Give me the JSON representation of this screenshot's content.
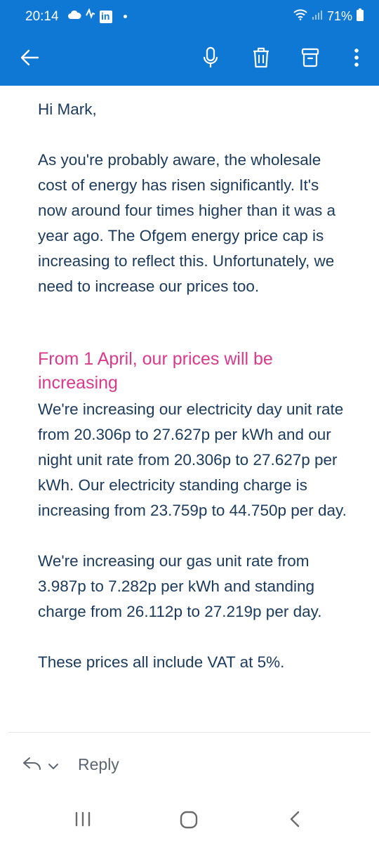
{
  "status_bar": {
    "time": "20:14",
    "battery": "71%",
    "icons": [
      "cloud-icon",
      "activity-icon",
      "linkedin-icon",
      "dot-icon",
      "wifi-icon",
      "signal-icon",
      "battery-icon"
    ],
    "linkedin_text": "in"
  },
  "app_bar": {
    "color": "#0f78d4",
    "icons": [
      "back-arrow-icon",
      "microphone-icon",
      "trash-icon",
      "archive-icon",
      "more-vertical-icon"
    ]
  },
  "email": {
    "greeting": "Hi Mark,",
    "paragraph1": "As you're probably aware, the wholesale cost of energy has risen significantly. It's now around four times higher than it was a year ago. The Ofgem energy price cap is increasing to reflect this. Unfortunately, we need to increase our prices too.",
    "heading": "From 1 April, our prices will be increasing",
    "paragraph2": "We're increasing our electricity day unit rate from 20.306p to 27.627p per kWh and our night unit rate from 20.306p to 27.627p per kWh. Our electricity standing charge is increasing from 23.759p to 44.750p per day.",
    "paragraph3": "We're increasing our gas unit rate from 3.987p to 7.282p per kWh and standing charge from 26.112p to 27.219p per day.",
    "paragraph4": "These prices all include VAT at 5%.",
    "heading_color": "#d93a8c",
    "text_color": "#1b3a5c"
  },
  "reply_bar": {
    "reply_label": "Reply",
    "icons": [
      "reply-arrow-icon",
      "chevron-down-icon"
    ]
  },
  "nav_bar": {
    "icons": [
      "recent-apps-icon",
      "home-icon",
      "back-icon"
    ]
  }
}
